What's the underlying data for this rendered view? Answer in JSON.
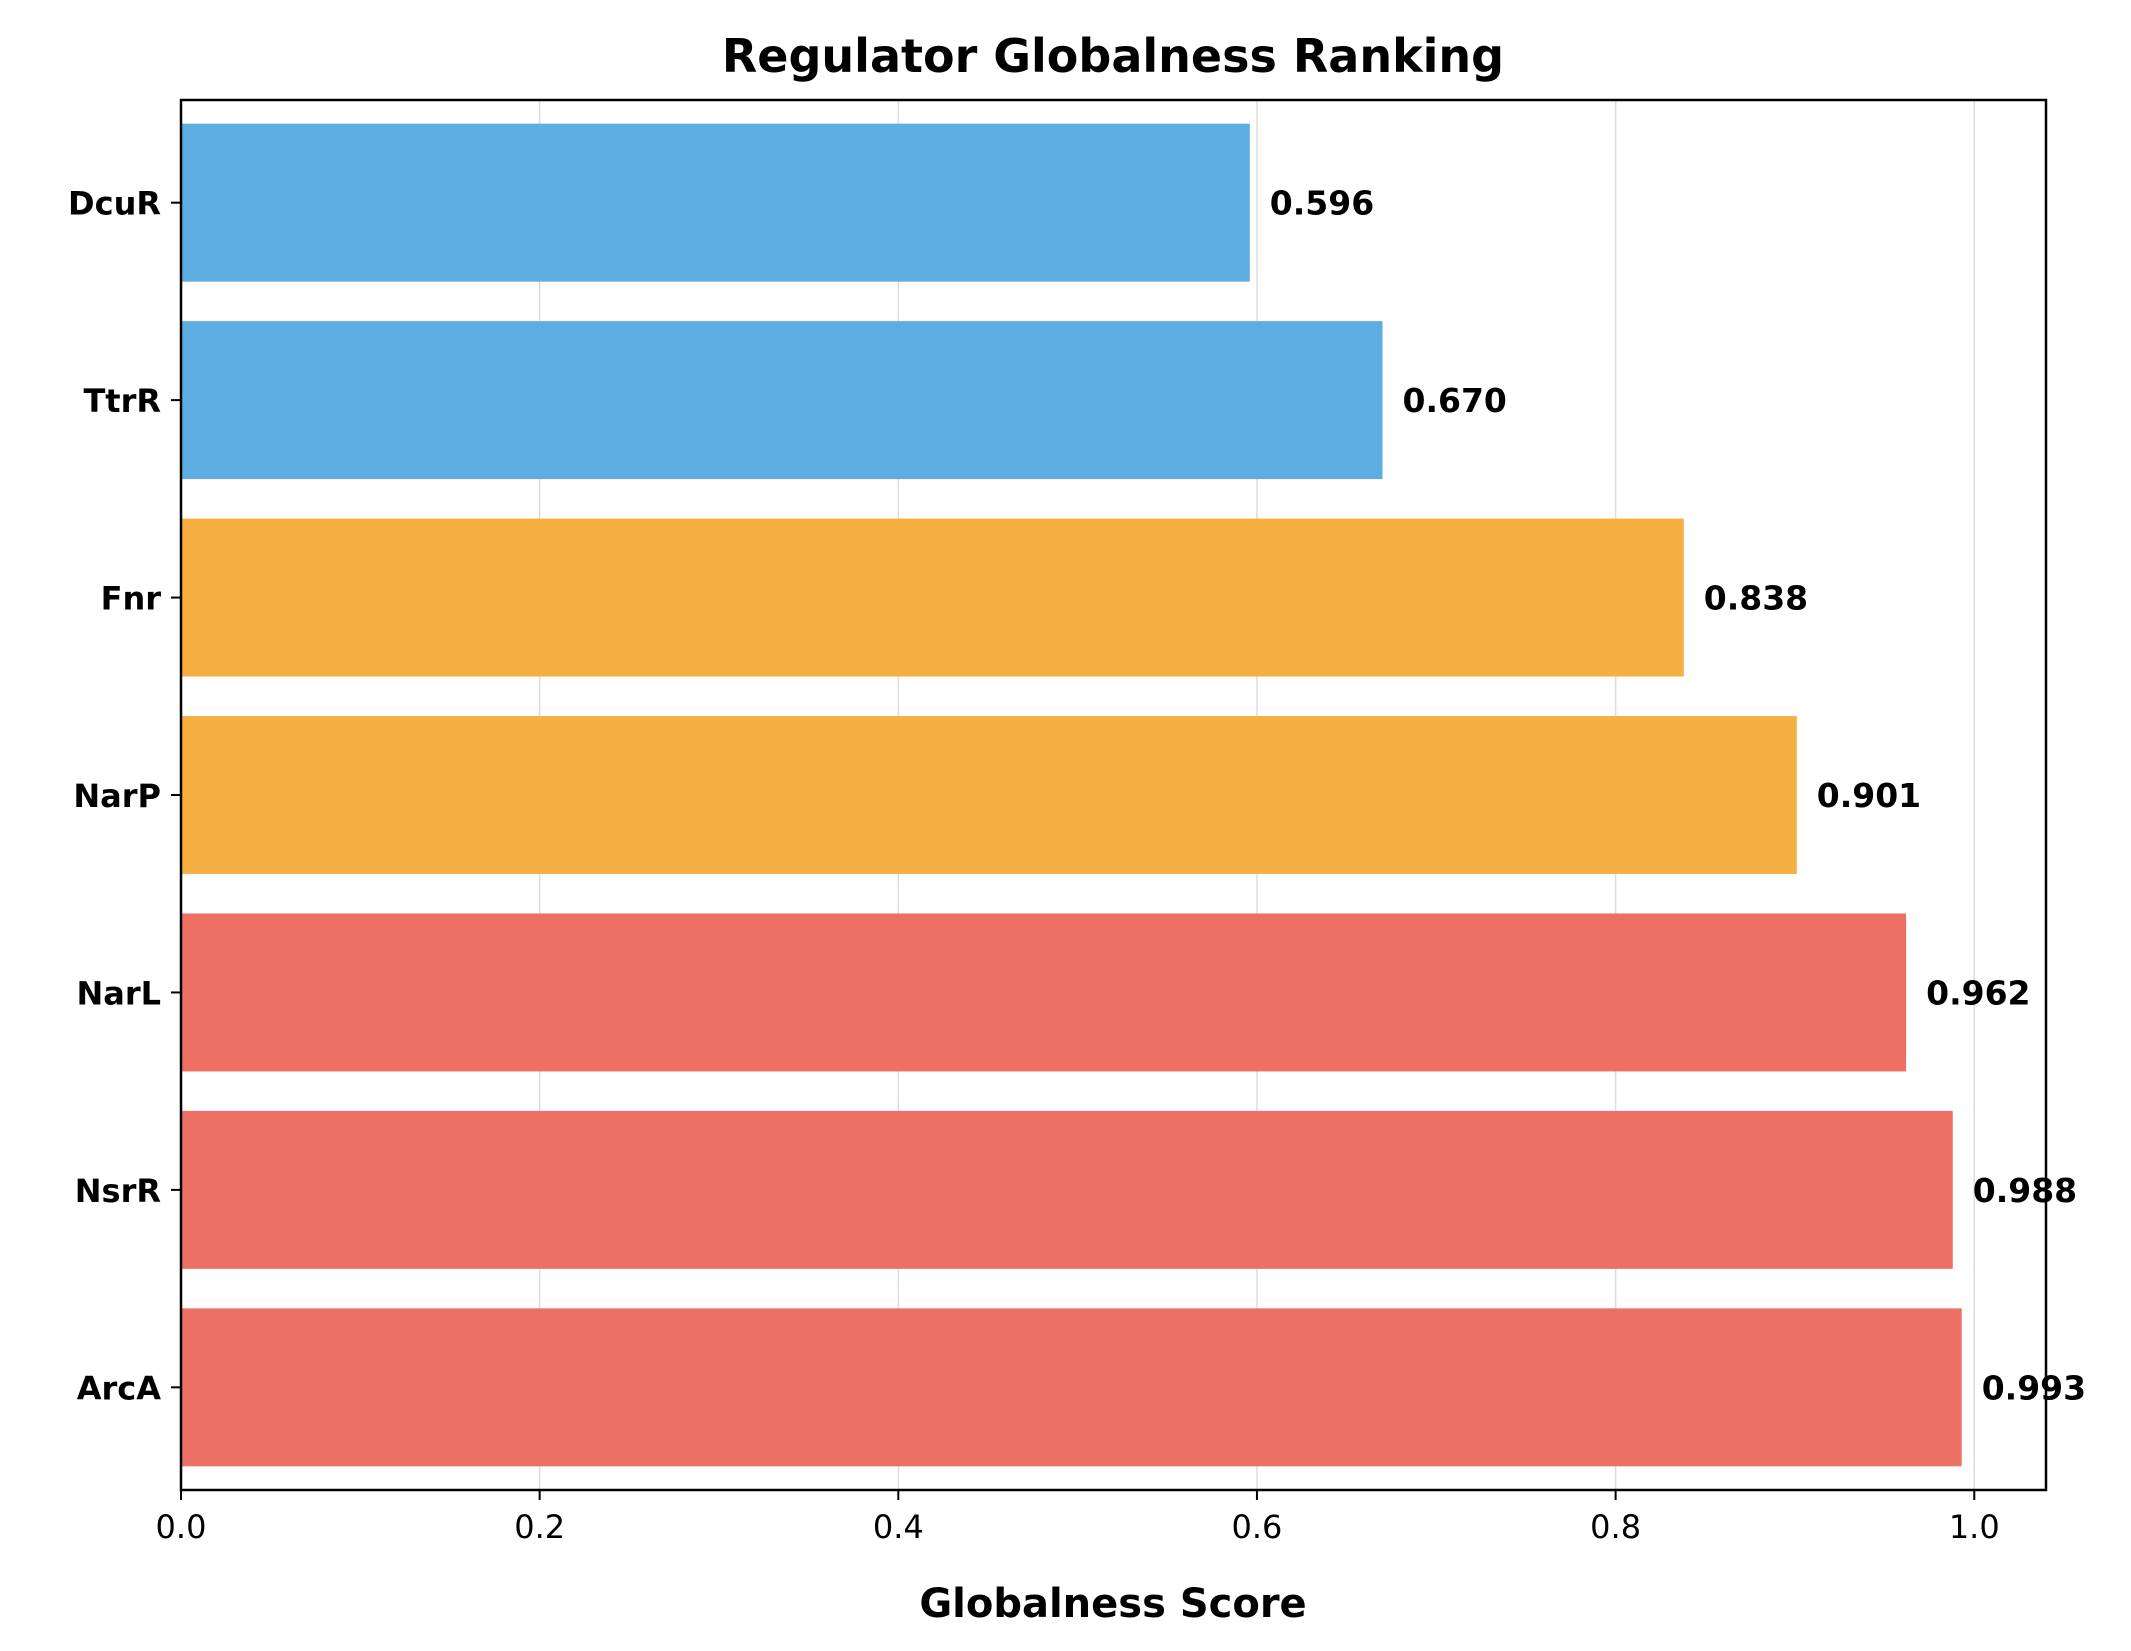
{
  "chart_data": {
    "type": "bar",
    "orientation": "horizontal",
    "title": "Regulator Globalness Ranking",
    "xlabel": "Globalness Score",
    "ylabel": "",
    "xlim": [
      0,
      1.04
    ],
    "xticks": [
      0.0,
      0.2,
      0.4,
      0.6,
      0.8,
      1.0
    ],
    "xtick_labels": [
      "0.0",
      "0.2",
      "0.4",
      "0.6",
      "0.8",
      "1.0"
    ],
    "grid": "vertical",
    "categories": [
      "DcuR",
      "TtrR",
      "Fnr",
      "NarP",
      "NarL",
      "NsrR",
      "ArcA"
    ],
    "values": [
      0.596,
      0.67,
      0.838,
      0.901,
      0.962,
      0.988,
      0.993
    ],
    "value_labels": [
      "0.596",
      "0.670",
      "0.838",
      "0.901",
      "0.962",
      "0.988",
      "0.993"
    ],
    "bar_colors": [
      "#5dade2",
      "#5dade2",
      "#f5b041",
      "#f5b041",
      "#ec7063",
      "#ec7063",
      "#ec7063"
    ],
    "colors": {
      "blue": "#5dade2",
      "orange": "#f5b041",
      "red": "#ec7063",
      "grid": "#dddddd",
      "frame": "#000000"
    }
  }
}
